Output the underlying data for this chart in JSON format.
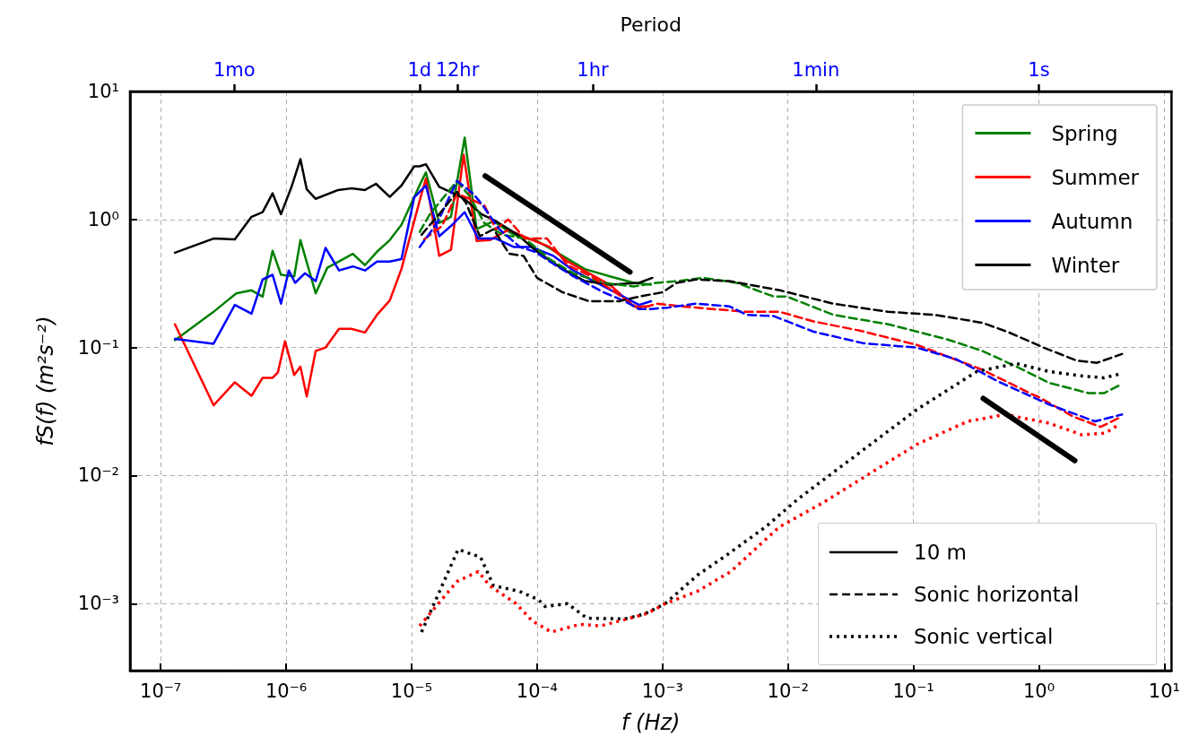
{
  "chart_data": {
    "type": "line",
    "xlabel": "f (Hz)",
    "ylabel": "fS(f) (m²s⁻²)",
    "x2label": "Period",
    "log": "xy",
    "grid": true,
    "legend": "top right",
    "xlim": [
      5.7e-08,
      11.4
    ],
    "ylim": [
      0.0003,
      10
    ],
    "xticks": [
      {
        "value": 1e-07,
        "label": "10⁻⁷"
      },
      {
        "value": 1e-06,
        "label": "10⁻⁶"
      },
      {
        "value": 1e-05,
        "label": "10⁻⁵"
      },
      {
        "value": 0.0001,
        "label": "10⁻⁴"
      },
      {
        "value": 0.001,
        "label": "10⁻³"
      },
      {
        "value": 0.01,
        "label": "10⁻²"
      },
      {
        "value": 0.1,
        "label": "10⁻¹"
      },
      {
        "value": 1,
        "label": "10⁰"
      },
      {
        "value": 10,
        "label": "10¹"
      }
    ],
    "yticks": [
      {
        "value": 0.001,
        "label": "10⁻³"
      },
      {
        "value": 0.01,
        "label": "10⁻²"
      },
      {
        "value": 0.1,
        "label": "10⁻¹"
      },
      {
        "value": 1,
        "label": "10⁰"
      },
      {
        "value": 10,
        "label": "10¹"
      }
    ],
    "annotations": [
      "10 m",
      "Sonic horizontal",
      "Sonic vertical",
      {
        "text": "1mo",
        "x": 3.86e-07
      },
      {
        "text": "1d",
        "x": 1.157e-05
      },
      {
        "text": "12hr",
        "x": 2.315e-05
      },
      {
        "text": "1hr",
        "x": 0.0002778
      },
      {
        "text": "1min",
        "x": 0.01667
      },
      {
        "text": "1s",
        "x": 1.0
      }
    ],
    "series": [
      {
        "name": "Spring",
        "color": "#008000",
        "line_style": "solid",
        "x": [
          1.3e-07,
          2.64e-07,
          4e-07,
          5.3e-07,
          6.5e-07,
          7.8e-07,
          9.1e-07,
          1.16e-06,
          1.3e-06,
          1.72e-06,
          2.13e-06,
          2.64e-06,
          3.4e-06,
          4.25e-06,
          5.3e-06,
          6.7e-06,
          8.3e-06,
          1.2e-05,
          1.3e-05,
          1.66e-05,
          2.06e-05,
          2.65e-05,
          3.3e-05,
          4.5e-05,
          6.5e-05,
          0.0001,
          0.00016,
          0.00024,
          0.00038,
          0.00059,
          0.00081
        ],
        "values": [
          0.114,
          0.19,
          0.265,
          0.28,
          0.25,
          0.57,
          0.37,
          0.36,
          0.69,
          0.265,
          0.42,
          0.47,
          0.54,
          0.44,
          0.56,
          0.69,
          0.91,
          1.99,
          2.33,
          0.94,
          1.05,
          4.36,
          0.84,
          0.97,
          0.76,
          0.68,
          0.52,
          0.41,
          0.36,
          0.32,
          0.31
        ]
      },
      {
        "name": "Summer",
        "color": "#ff0000",
        "line_style": "solid",
        "x": [
          1.3e-07,
          2.64e-07,
          3.9e-07,
          5.3e-07,
          6.5e-07,
          7.8e-07,
          8.6e-07,
          9.8e-07,
          1.16e-06,
          1.3e-06,
          1.46e-06,
          1.72e-06,
          2.06e-06,
          2.64e-06,
          3.3e-06,
          4.25e-06,
          5.3e-06,
          6.7e-06,
          8.3e-06,
          1.2e-05,
          1.3e-05,
          1.66e-05,
          2.06e-05,
          2.6e-05,
          3.3e-05,
          4.2e-05,
          5.9e-05,
          8.6e-05,
          0.000126,
          0.000175,
          0.00026,
          0.00038,
          0.00059,
          0.00077
        ],
        "values": [
          0.152,
          0.0354,
          0.0535,
          0.042,
          0.058,
          0.058,
          0.064,
          0.112,
          0.061,
          0.071,
          0.0415,
          0.094,
          0.1,
          0.14,
          0.14,
          0.131,
          0.18,
          0.233,
          0.41,
          1.59,
          2.08,
          0.52,
          0.58,
          3.2,
          0.68,
          0.69,
          0.83,
          0.71,
          0.61,
          0.47,
          0.38,
          0.31,
          0.21,
          0.21
        ]
      },
      {
        "name": "Autumn",
        "color": "#0000ff",
        "line_style": "solid",
        "x": [
          1.3e-07,
          2.64e-07,
          3.9e-07,
          5.3e-07,
          6.5e-07,
          7.8e-07,
          9.1e-07,
          1.05e-06,
          1.18e-06,
          1.41e-06,
          1.72e-06,
          2.06e-06,
          2.64e-06,
          3.4e-06,
          4.25e-06,
          5.3e-06,
          6.7e-06,
          8.3e-06,
          1.05e-05,
          1.2e-05,
          1.3e-05,
          1.66e-05,
          2.06e-05,
          2.65e-05,
          3.4e-05,
          4.7e-05,
          6.5e-05,
          9e-05,
          0.000135,
          0.000195,
          0.0003,
          0.00045,
          0.00065,
          0.00081
        ],
        "values": [
          0.117,
          0.107,
          0.215,
          0.184,
          0.34,
          0.37,
          0.22,
          0.4,
          0.32,
          0.38,
          0.33,
          0.6,
          0.4,
          0.43,
          0.4,
          0.47,
          0.47,
          0.49,
          1.49,
          1.7,
          1.84,
          0.74,
          0.89,
          1.14,
          0.71,
          0.71,
          0.61,
          0.61,
          0.52,
          0.4,
          0.32,
          0.26,
          0.215,
          0.23
        ]
      },
      {
        "name": "Winter",
        "color": "#000000",
        "line_style": "solid",
        "x": [
          1.3e-07,
          2.64e-07,
          3.9e-07,
          5.3e-07,
          6.5e-07,
          7.8e-07,
          9.1e-07,
          1.1e-06,
          1.3e-06,
          1.46e-06,
          1.72e-06,
          2.6e-06,
          3.3e-06,
          4.25e-06,
          5.2e-06,
          6.7e-06,
          8.3e-06,
          1.05e-05,
          1.16e-05,
          1.3e-05,
          1.66e-05,
          2.6e-05,
          3.6e-05,
          4.7e-05,
          7e-05,
          0.0001,
          0.00016,
          0.00024,
          0.00038,
          0.00065,
          0.00083
        ],
        "values": [
          0.55,
          0.71,
          0.7,
          1.05,
          1.14,
          1.6,
          1.1,
          1.78,
          2.96,
          1.72,
          1.45,
          1.7,
          1.75,
          1.7,
          1.9,
          1.5,
          1.84,
          2.6,
          2.6,
          2.7,
          1.8,
          1.47,
          1.1,
          0.97,
          0.76,
          0.56,
          0.41,
          0.33,
          0.31,
          0.32,
          0.35
        ]
      },
      {
        "color": "#008000",
        "line_style": "dashed",
        "x": [
          1.16e-05,
          1.4e-05,
          2.3e-05,
          2.9e-05,
          3.8e-05,
          5.3e-05,
          8e-05,
          0.000126,
          0.000195,
          0.00034,
          0.00059,
          0.0009,
          0.0013,
          0.0021,
          0.0039,
          0.0077,
          0.0098,
          0.023,
          0.063,
          0.19,
          0.355,
          0.66,
          1.2,
          2.5,
          3.3,
          4.6
        ],
        "values": [
          0.8,
          1.1,
          2.0,
          1.52,
          0.94,
          0.76,
          0.71,
          0.49,
          0.38,
          0.32,
          0.3,
          0.32,
          0.33,
          0.35,
          0.32,
          0.25,
          0.25,
          0.18,
          0.152,
          0.115,
          0.094,
          0.071,
          0.053,
          0.044,
          0.044,
          0.052
        ]
      },
      {
        "color": "#ff0000",
        "line_style": "dashed",
        "x": [
          1.26e-05,
          1.75e-05,
          2.3e-05,
          2.9e-05,
          3.8e-05,
          4.7e-05,
          5.9e-05,
          8e-05,
          0.00012,
          0.000175,
          0.00027,
          0.00042,
          0.00065,
          0.0009,
          0.0014,
          0.0025,
          0.0047,
          0.0086,
          0.016,
          0.038,
          0.106,
          0.355,
          0.89,
          1.0,
          1.86,
          3.1,
          4.6
        ],
        "values": [
          0.7,
          0.89,
          1.59,
          1.45,
          1.29,
          0.84,
          1.0,
          0.71,
          0.71,
          0.44,
          0.36,
          0.27,
          0.2,
          0.22,
          0.21,
          0.2,
          0.19,
          0.19,
          0.16,
          0.135,
          0.105,
          0.067,
          0.043,
          0.041,
          0.029,
          0.024,
          0.029
        ]
      },
      {
        "color": "#0000ff",
        "line_style": "dashed",
        "x": [
          1.16e-05,
          1.6e-05,
          2.3e-05,
          3.1e-05,
          3.6e-05,
          5e-05,
          7.3e-05,
          9.6e-05,
          0.00014,
          0.000195,
          0.00034,
          0.0005,
          0.00065,
          0.00081,
          0.0011,
          0.00184,
          0.0034,
          0.0047,
          0.0077,
          0.016,
          0.04,
          0.106,
          0.22,
          0.48,
          1.2,
          2.8,
          4.6
        ],
        "values": [
          0.61,
          0.94,
          2.0,
          1.59,
          1.33,
          0.84,
          0.61,
          0.56,
          0.44,
          0.36,
          0.27,
          0.23,
          0.2,
          0.2,
          0.205,
          0.22,
          0.21,
          0.18,
          0.176,
          0.133,
          0.108,
          0.1,
          0.081,
          0.054,
          0.036,
          0.0265,
          0.03
        ]
      },
      {
        "color": "#000000",
        "line_style": "dashed",
        "x": [
          1.2e-05,
          1.66e-05,
          2.3e-05,
          2.7e-05,
          3.5e-05,
          4.5e-05,
          6e-05,
          7.8e-05,
          0.0001,
          0.00016,
          0.00026,
          0.00045,
          0.00065,
          0.001,
          0.0013,
          0.00184,
          0.0034,
          0.0086,
          0.023,
          0.063,
          0.148,
          0.355,
          0.58,
          1.09,
          2.0,
          2.9,
          4.6
        ],
        "values": [
          0.76,
          1.1,
          1.64,
          1.36,
          0.74,
          0.84,
          0.54,
          0.52,
          0.35,
          0.27,
          0.23,
          0.23,
          0.25,
          0.27,
          0.32,
          0.34,
          0.33,
          0.28,
          0.22,
          0.19,
          0.18,
          0.156,
          0.131,
          0.1,
          0.079,
          0.076,
          0.089
        ]
      },
      {
        "color": "#000000",
        "line_style": "dotted",
        "x": [
          1.2e-05,
          2.35e-05,
          3.55e-05,
          4.5e-05,
          7.2e-05,
          0.000103,
          0.000116,
          0.000175,
          0.00025,
          0.0005,
          0.00072,
          0.00105,
          0.0019,
          0.0032,
          0.0066,
          0.0121,
          0.106,
          0.32,
          0.66,
          1.2,
          2.2,
          3.3,
          4.4
        ],
        "values": [
          0.0006,
          0.00265,
          0.0023,
          0.00138,
          0.00125,
          0.00107,
          0.00095,
          0.001,
          0.00077,
          0.00076,
          0.00083,
          0.001,
          0.00167,
          0.00237,
          0.00396,
          0.0066,
          0.0327,
          0.065,
          0.075,
          0.065,
          0.06,
          0.058,
          0.062
        ]
      },
      {
        "color": "#ff0000",
        "line_style": "dotted",
        "x": [
          1.16e-05,
          2.3e-05,
          3.4e-05,
          4.2e-05,
          6.8e-05,
          9.2e-05,
          0.00013,
          0.00022,
          0.00032,
          0.0005,
          0.00076,
          0.00105,
          0.0019,
          0.0035,
          0.0085,
          0.0193,
          0.106,
          0.27,
          0.54,
          1.2,
          2.2,
          3.4,
          4.4
        ],
        "values": [
          0.00067,
          0.00149,
          0.00178,
          0.00138,
          0.001,
          0.00073,
          0.0006,
          0.00069,
          0.00067,
          0.00075,
          0.00084,
          0.001,
          0.00125,
          0.00178,
          0.00396,
          0.0062,
          0.0175,
          0.0265,
          0.03,
          0.0257,
          0.0208,
          0.0215,
          0.0253
        ]
      },
      {
        "color": "#000000",
        "line_style": "solid",
        "x": [
          3.86e-05,
          0.00055
        ],
        "values": [
          2.19,
          0.389
        ]
      },
      {
        "color": "#000000",
        "line_style": "solid",
        "x": [
          0.36,
          1.93
        ],
        "values": [
          0.04,
          0.0131
        ]
      }
    ]
  }
}
